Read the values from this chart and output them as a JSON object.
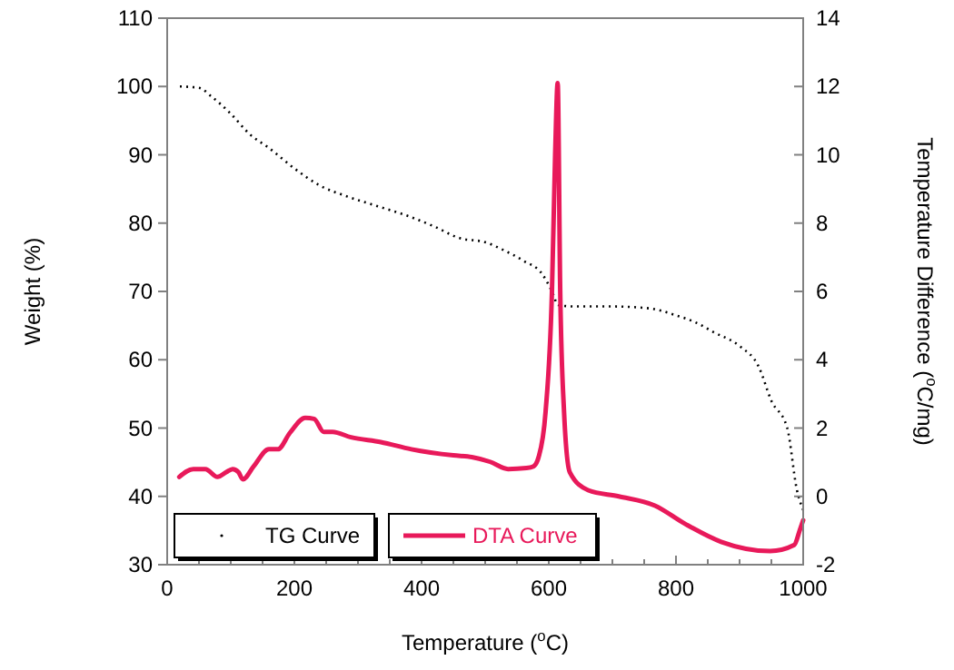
{
  "chart_data": {
    "type": "line",
    "xlabel": "Temperature ($^{o}$C)",
    "ylabel": "Weight (%)",
    "y2label": "Temperature Difference ($^{o}$C/mg)",
    "xlim": [
      0,
      1000
    ],
    "xticks": [
      0,
      {
        "value": 50,
        "label": null
      },
      {
        "value": 100,
        "label": null
      },
      {
        "value": 150,
        "label": null
      },
      200,
      {
        "value": 250,
        "label": null
      },
      {
        "value": 300,
        "label": null
      },
      {
        "value": 350,
        "label": null
      },
      400,
      {
        "value": 450,
        "label": null
      },
      {
        "value": 500,
        "label": null
      },
      {
        "value": 550,
        "label": null
      },
      600,
      {
        "value": 650,
        "label": null
      },
      {
        "value": 700,
        "label": null
      },
      {
        "value": 750,
        "label": null
      },
      800,
      {
        "value": 850,
        "label": null
      },
      {
        "value": 900,
        "label": null
      },
      {
        "value": 950,
        "label": null
      },
      1000
    ],
    "ylim": [
      30,
      110
    ],
    "yticks": [
      30,
      40,
      50,
      60,
      70,
      80,
      90,
      100,
      110
    ],
    "y2lim": [
      -2,
      14
    ],
    "y2ticks": [
      -2,
      0,
      2,
      4,
      6,
      8,
      10,
      12,
      14
    ],
    "legend": "bottom left",
    "grid": false,
    "series": [
      {
        "name": "TG Curve",
        "color": "#000000",
        "line_style": "dotted",
        "marker": "none",
        "x": [
          20,
          50,
          70,
          100,
          130,
          160,
          200,
          240,
          280,
          330,
          380,
          420,
          460,
          500,
          530,
          560,
          590,
          605,
          615,
          640,
          700,
          760,
          800,
          830,
          860,
          900,
          930,
          950,
          975,
          990,
          1000
        ],
        "values": [
          100,
          99.8,
          98.5,
          96,
          93,
          91,
          88,
          85.5,
          84,
          82.5,
          81,
          79.5,
          77.8,
          77.2,
          76,
          74.5,
          72.5,
          70,
          68,
          67.8,
          67.8,
          67.5,
          66.5,
          65.5,
          64,
          62,
          59,
          54,
          50,
          41,
          38
        ]
      },
      {
        "name": "DTA Curve",
        "color": "#e8195a",
        "axis": "y2",
        "line_style": "solid",
        "marker": "none",
        "x": [
          19,
          41,
          60,
          79,
          93,
          103,
          112,
          119,
          136,
          160,
          174,
          193,
          217,
          231,
          246,
          260,
          289,
          336,
          384,
          450,
          479,
          508,
          536,
          565,
          576,
          584,
          595,
          605,
          610,
          614,
          618,
          624,
          633,
          662,
          710,
          767,
          814,
          871,
          948,
          986,
          995,
          1000
        ],
        "values": [
          0.57,
          0.8,
          0.8,
          0.57,
          0.71,
          0.8,
          0.71,
          0.5,
          0.88,
          1.38,
          1.38,
          1.86,
          2.3,
          2.27,
          1.89,
          1.89,
          1.73,
          1.59,
          1.38,
          1.2,
          1.15,
          1.01,
          0.8,
          0.83,
          0.88,
          1.15,
          2.48,
          6,
          10,
          12.1,
          6,
          2.48,
          0.71,
          0.18,
          0,
          -0.27,
          -0.8,
          -1.33,
          -1.6,
          -1.42,
          -0.97,
          -0.7
        ]
      }
    ]
  }
}
